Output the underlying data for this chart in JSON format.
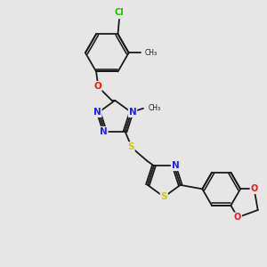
{
  "background_color": "#e6e6e6",
  "bond_color": "#1a1a1a",
  "atom_colors": {
    "N": "#2020ff",
    "O": "#ff1010",
    "S": "#cccc00",
    "Cl": "#22bb00",
    "C": "#1a1a1a"
  },
  "figsize": [
    3.0,
    3.0
  ],
  "dpi": 100,
  "xlim": [
    0,
    10
  ],
  "ylim": [
    0,
    10
  ]
}
